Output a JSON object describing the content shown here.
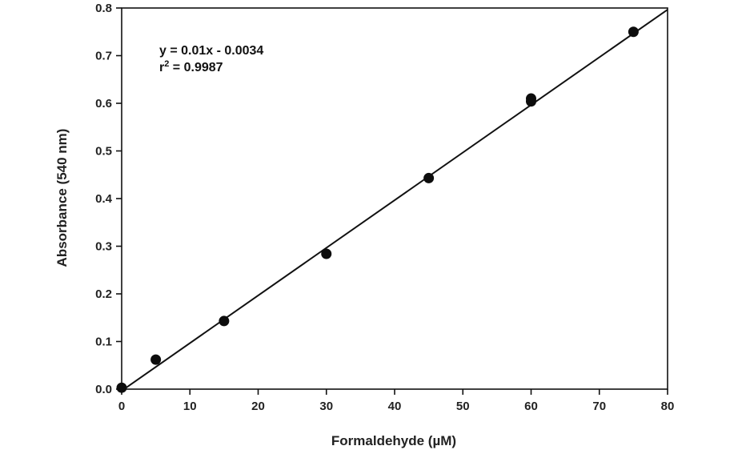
{
  "chart_data": {
    "type": "scatter",
    "title": "",
    "xlabel": "Formaldehyde (µM)",
    "ylabel": "Absorbance (540 nm)",
    "xlim": [
      0,
      80
    ],
    "ylim": [
      0,
      0.8
    ],
    "xticks": [
      "0",
      "10",
      "20",
      "30",
      "40",
      "50",
      "60",
      "70",
      "80"
    ],
    "yticks": [
      "0.0",
      "0.1",
      "0.2",
      "0.3",
      "0.4",
      "0.5",
      "0.6",
      "0.7",
      "0.8"
    ],
    "grid": false,
    "points": [
      {
        "x": 0,
        "y": 0.003
      },
      {
        "x": 5,
        "y": 0.062
      },
      {
        "x": 15,
        "y": 0.143
      },
      {
        "x": 30,
        "y": 0.284
      },
      {
        "x": 45,
        "y": 0.443
      },
      {
        "x": 60,
        "y": 0.61
      },
      {
        "x": 60,
        "y": 0.604
      },
      {
        "x": 75,
        "y": 0.75
      }
    ],
    "fit": {
      "slope": 0.01,
      "intercept": -0.0034
    },
    "annotation": {
      "equation": "y = 0.01x - 0.0034",
      "r_prefix": "r",
      "r_exponent": "2",
      "r_value": " = 0.9987"
    }
  }
}
